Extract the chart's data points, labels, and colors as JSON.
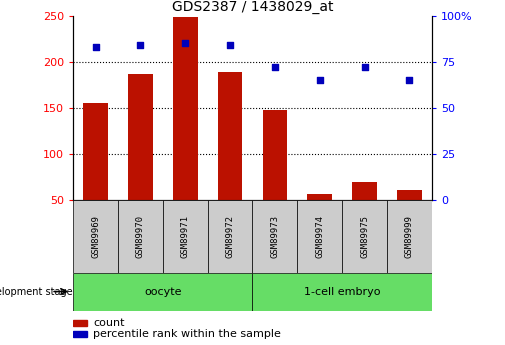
{
  "title": "GDS2387 / 1438029_at",
  "samples": [
    "GSM89969",
    "GSM89970",
    "GSM89971",
    "GSM89972",
    "GSM89973",
    "GSM89974",
    "GSM89975",
    "GSM89999"
  ],
  "counts": [
    155,
    187,
    248,
    189,
    148,
    57,
    70,
    61
  ],
  "percentiles": [
    83,
    84,
    85,
    84,
    72,
    65,
    72,
    65
  ],
  "ylim_left": [
    50,
    250
  ],
  "ylim_right": [
    0,
    100
  ],
  "yticks_left": [
    50,
    100,
    150,
    200,
    250
  ],
  "yticks_right": [
    0,
    25,
    50,
    75,
    100
  ],
  "groups": [
    {
      "label": "oocyte",
      "start": 0,
      "end": 3,
      "color": "#66DD66"
    },
    {
      "label": "1-cell embryo",
      "start": 4,
      "end": 7,
      "color": "#66DD66"
    }
  ],
  "bar_color": "#BB1100",
  "dot_color": "#0000BB",
  "bar_bottom": 50,
  "legend_count_label": "count",
  "legend_pct_label": "percentile rank within the sample",
  "dev_stage_label": "development stage"
}
